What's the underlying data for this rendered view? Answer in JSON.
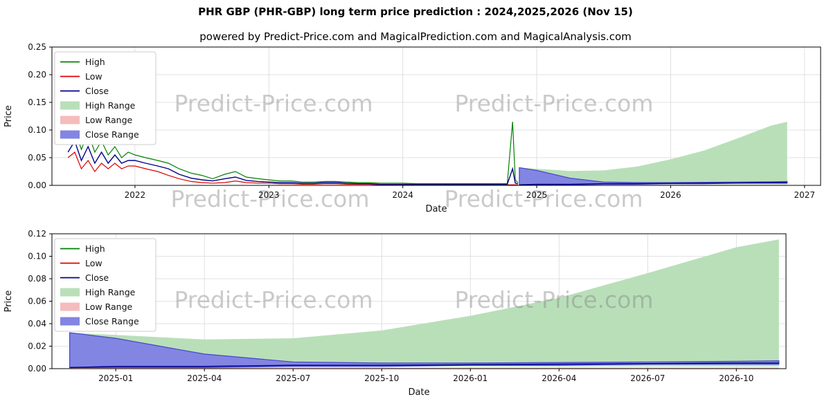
{
  "title": "PHR GBP (PHR-GBP) long term price prediction : 2024,2025,2026 (Nov 15)",
  "subtitle": "powered by Predict-Price.com and MagicalPrediction.com and MagicalAnalysis.com",
  "watermark": "Predict-Price.com",
  "colors": {
    "high": "#008000",
    "low": "#dd0000",
    "close": "#00008b",
    "high_range": "#b9dfb9",
    "low_range": "#f4bcbc",
    "close_range": "#8385e2",
    "close_range_edge": "#4646c8",
    "grid": "#d8d8d8"
  },
  "chart_data": [
    {
      "type": "line",
      "name": "long-term-history-and-forecast",
      "xlabel": "Date",
      "ylabel": "Price",
      "xlim": [
        2021.38,
        2027.12
      ],
      "ylim": [
        0,
        0.25
      ],
      "yticks": [
        0.0,
        0.05,
        0.1,
        0.15,
        0.2,
        0.25
      ],
      "ytick_labels": [
        "0.00",
        "0.05",
        "0.10",
        "0.15",
        "0.20",
        "0.25"
      ],
      "xticks": [
        2022,
        2023,
        2024,
        2025,
        2026,
        2027
      ],
      "xtick_labels": [
        "2022",
        "2023",
        "2024",
        "2025",
        "2026",
        "2027"
      ],
      "legend": [
        {
          "label": "High",
          "type": "line",
          "color": "#008000"
        },
        {
          "label": "Low",
          "type": "line",
          "color": "#dd0000"
        },
        {
          "label": "Close",
          "type": "line",
          "color": "#00008b"
        },
        {
          "label": "High Range",
          "type": "patch",
          "color": "#b9dfb9"
        },
        {
          "label": "Low Range",
          "type": "patch",
          "color": "#f4bcbc"
        },
        {
          "label": "Close Range",
          "type": "patch",
          "color": "#8385e2"
        }
      ],
      "areas": [
        {
          "name": "high-range",
          "color": "#b9dfb9",
          "x": [
            2024.87,
            2025.0,
            2025.25,
            2025.5,
            2025.75,
            2026.0,
            2026.25,
            2026.5,
            2026.75,
            2026.87
          ],
          "upper": [
            0.032,
            0.03,
            0.026,
            0.027,
            0.034,
            0.047,
            0.063,
            0.085,
            0.108,
            0.115
          ],
          "lower": [
            0.002,
            0.002,
            0.002,
            0.002,
            0.002,
            0.002,
            0.002,
            0.002,
            0.002,
            0.002
          ]
        },
        {
          "name": "low-range",
          "color": "#f4bcbc",
          "x": [
            2024.87,
            2025.0,
            2025.25,
            2025.5,
            2025.75,
            2026.0,
            2026.25,
            2026.5,
            2026.75,
            2026.87
          ],
          "upper": [
            0.002,
            0.002,
            0.001,
            0.001,
            0.001,
            0.001,
            0.001,
            0.001,
            0.001,
            0.001
          ],
          "lower": [
            0,
            0,
            0,
            0,
            0,
            0,
            0,
            0,
            0,
            0
          ]
        },
        {
          "name": "close-range",
          "color": "#8385e2",
          "edge": "#4646c8",
          "x": [
            2024.87,
            2025.0,
            2025.25,
            2025.5,
            2025.75,
            2026.0,
            2026.25,
            2026.5,
            2026.75,
            2026.87
          ],
          "upper": [
            0.032,
            0.027,
            0.013,
            0.006,
            0.005,
            0.005,
            0.0055,
            0.006,
            0.0065,
            0.007
          ],
          "lower": [
            0.001,
            0.001,
            0.001,
            0.002,
            0.002,
            0.003,
            0.003,
            0.004,
            0.004,
            0.004
          ]
        }
      ],
      "lines": [
        {
          "name": "high",
          "color": "#008000",
          "width": 1.2,
          "x": [
            2021.5,
            2021.55,
            2021.6,
            2021.65,
            2021.7,
            2021.75,
            2021.8,
            2021.85,
            2021.9,
            2021.95,
            2022.0,
            2022.08,
            2022.17,
            2022.25,
            2022.33,
            2022.42,
            2022.5,
            2022.58,
            2022.67,
            2022.75,
            2022.83,
            2022.92,
            2023.0,
            2023.08,
            2023.17,
            2023.25,
            2023.33,
            2023.42,
            2023.5,
            2023.58,
            2023.67,
            2023.75,
            2023.83,
            2023.92,
            2024.0,
            2024.1,
            2024.2,
            2024.3,
            2024.4,
            2024.5,
            2024.6,
            2024.7,
            2024.78,
            2024.82,
            2024.84,
            2024.86
          ],
          "y": [
            0.075,
            0.1,
            0.065,
            0.095,
            0.06,
            0.08,
            0.055,
            0.07,
            0.05,
            0.06,
            0.055,
            0.05,
            0.045,
            0.04,
            0.03,
            0.022,
            0.018,
            0.012,
            0.02,
            0.025,
            0.015,
            0.012,
            0.01,
            0.008,
            0.008,
            0.006,
            0.006,
            0.007,
            0.007,
            0.006,
            0.005,
            0.005,
            0.004,
            0.004,
            0.004,
            0.003,
            0.003,
            0.003,
            0.003,
            0.003,
            0.003,
            0.003,
            0.003,
            0.115,
            0.01,
            0.005
          ]
        },
        {
          "name": "low",
          "color": "#dd0000",
          "width": 1.2,
          "x": [
            2021.5,
            2021.55,
            2021.6,
            2021.65,
            2021.7,
            2021.75,
            2021.8,
            2021.85,
            2021.9,
            2021.95,
            2022.0,
            2022.08,
            2022.17,
            2022.25,
            2022.33,
            2022.42,
            2022.5,
            2022.58,
            2022.67,
            2022.75,
            2022.83,
            2022.92,
            2023.0,
            2023.08,
            2023.17,
            2023.25,
            2023.33,
            2023.42,
            2023.5,
            2023.58,
            2023.67,
            2023.75,
            2023.83,
            2023.92,
            2024.0,
            2024.1,
            2024.2,
            2024.3,
            2024.4,
            2024.5,
            2024.6,
            2024.7,
            2024.78,
            2024.82,
            2024.84,
            2024.86
          ],
          "y": [
            0.05,
            0.06,
            0.03,
            0.045,
            0.025,
            0.04,
            0.03,
            0.04,
            0.03,
            0.035,
            0.035,
            0.03,
            0.025,
            0.018,
            0.012,
            0.007,
            0.005,
            0.004,
            0.005,
            0.008,
            0.005,
            0.004,
            0.004,
            0.003,
            0.003,
            0.002,
            0.002,
            0.003,
            0.003,
            0.002,
            0.002,
            0.002,
            0.001,
            0.001,
            0.001,
            0.001,
            0.001,
            0.001,
            0.001,
            0.001,
            0.001,
            0.001,
            0.001,
            0.001,
            0.001,
            0.001
          ]
        },
        {
          "name": "close",
          "color": "#00008b",
          "width": 1.4,
          "x": [
            2021.5,
            2021.55,
            2021.6,
            2021.65,
            2021.7,
            2021.75,
            2021.8,
            2021.85,
            2021.9,
            2021.95,
            2022.0,
            2022.08,
            2022.17,
            2022.25,
            2022.33,
            2022.42,
            2022.5,
            2022.58,
            2022.67,
            2022.75,
            2022.83,
            2022.92,
            2023.0,
            2023.08,
            2023.17,
            2023.25,
            2023.33,
            2023.42,
            2023.5,
            2023.58,
            2023.67,
            2023.75,
            2023.83,
            2023.92,
            2024.0,
            2024.1,
            2024.2,
            2024.3,
            2024.4,
            2024.5,
            2024.6,
            2024.7,
            2024.78,
            2024.82,
            2024.84,
            2024.86
          ],
          "y": [
            0.06,
            0.08,
            0.045,
            0.07,
            0.04,
            0.06,
            0.04,
            0.055,
            0.04,
            0.045,
            0.045,
            0.04,
            0.035,
            0.03,
            0.02,
            0.013,
            0.01,
            0.008,
            0.012,
            0.015,
            0.009,
            0.007,
            0.006,
            0.005,
            0.005,
            0.004,
            0.004,
            0.005,
            0.005,
            0.004,
            0.003,
            0.003,
            0.002,
            0.002,
            0.002,
            0.002,
            0.002,
            0.002,
            0.002,
            0.002,
            0.002,
            0.002,
            0.002,
            0.03,
            0.004,
            0.003
          ]
        },
        {
          "name": "close-forecast",
          "color": "#00008b",
          "width": 1.4,
          "x": [
            2024.87,
            2025.0,
            2025.25,
            2025.5,
            2025.75,
            2026.0,
            2026.25,
            2026.5,
            2026.75,
            2026.87
          ],
          "y": [
            0.001,
            0.002,
            0.002,
            0.003,
            0.003,
            0.0035,
            0.004,
            0.0045,
            0.005,
            0.005
          ]
        }
      ]
    },
    {
      "type": "line",
      "name": "forecast-detail",
      "xlabel": "Date",
      "ylabel": "Price",
      "xlim": [
        2024.82,
        2026.89
      ],
      "ylim": [
        0,
        0.12
      ],
      "yticks": [
        0.0,
        0.02,
        0.04,
        0.06,
        0.08,
        0.1,
        0.12
      ],
      "ytick_labels": [
        "0.00",
        "0.02",
        "0.04",
        "0.06",
        "0.08",
        "0.10",
        "0.12"
      ],
      "xticks": [
        2025.0,
        2025.25,
        2025.5,
        2025.75,
        2026.0,
        2026.25,
        2026.5,
        2026.75
      ],
      "xtick_labels": [
        "2025-01",
        "2025-04",
        "2025-07",
        "2025-10",
        "2026-01",
        "2026-04",
        "2026-07",
        "2026-10"
      ],
      "legend": [
        {
          "label": "High",
          "type": "line",
          "color": "#008000"
        },
        {
          "label": "Low",
          "type": "line",
          "color": "#dd0000"
        },
        {
          "label": "Close",
          "type": "line",
          "color": "#00008b"
        },
        {
          "label": "High Range",
          "type": "patch",
          "color": "#b9dfb9"
        },
        {
          "label": "Low Range",
          "type": "patch",
          "color": "#f4bcbc"
        },
        {
          "label": "Close Range",
          "type": "patch",
          "color": "#8385e2"
        }
      ],
      "areas": [
        {
          "name": "high-range",
          "color": "#b9dfb9",
          "x": [
            2024.87,
            2025.0,
            2025.25,
            2025.5,
            2025.75,
            2026.0,
            2026.25,
            2026.5,
            2026.75,
            2026.87
          ],
          "upper": [
            0.032,
            0.03,
            0.026,
            0.027,
            0.034,
            0.047,
            0.063,
            0.085,
            0.108,
            0.115
          ],
          "lower": [
            0.002,
            0.002,
            0.002,
            0.002,
            0.002,
            0.002,
            0.002,
            0.002,
            0.002,
            0.002
          ]
        },
        {
          "name": "low-range",
          "color": "#f4bcbc",
          "x": [
            2024.87,
            2025.0,
            2025.25,
            2025.5,
            2025.75,
            2026.0,
            2026.25,
            2026.5,
            2026.75,
            2026.87
          ],
          "upper": [
            0.002,
            0.002,
            0.001,
            0.001,
            0.001,
            0.001,
            0.001,
            0.001,
            0.001,
            0.001
          ],
          "lower": [
            0,
            0,
            0,
            0,
            0,
            0,
            0,
            0,
            0,
            0
          ]
        },
        {
          "name": "close-range",
          "color": "#8385e2",
          "edge": "#4646c8",
          "x": [
            2024.87,
            2025.0,
            2025.25,
            2025.5,
            2025.75,
            2026.0,
            2026.25,
            2026.5,
            2026.75,
            2026.87
          ],
          "upper": [
            0.032,
            0.027,
            0.013,
            0.006,
            0.005,
            0.005,
            0.0055,
            0.006,
            0.0065,
            0.007
          ],
          "lower": [
            0.001,
            0.001,
            0.001,
            0.002,
            0.002,
            0.003,
            0.003,
            0.004,
            0.004,
            0.004
          ]
        }
      ],
      "lines": [
        {
          "name": "close-forecast",
          "color": "#00008b",
          "width": 1.5,
          "x": [
            2024.87,
            2025.0,
            2025.25,
            2025.5,
            2025.75,
            2026.0,
            2026.25,
            2026.5,
            2026.75,
            2026.87
          ],
          "y": [
            0.001,
            0.002,
            0.002,
            0.003,
            0.003,
            0.0035,
            0.004,
            0.0045,
            0.005,
            0.005
          ]
        }
      ]
    }
  ]
}
